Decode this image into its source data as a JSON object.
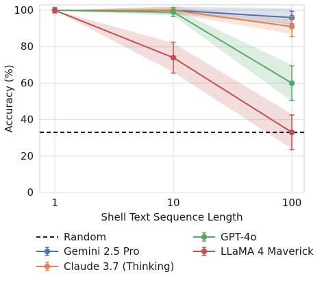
{
  "chart_data": {
    "type": "line",
    "title": "",
    "xlabel": "Shell Text Sequence Length",
    "ylabel": "Accuracy (%)",
    "x": [
      1,
      10,
      100
    ],
    "xticks": [
      "1",
      "10",
      "100"
    ],
    "yticks": [
      "0",
      "20",
      "40",
      "60",
      "80",
      "100"
    ],
    "ylim": [
      0,
      103
    ],
    "grid": true,
    "legend_position": "below",
    "random_baseline": {
      "name": "Random",
      "value": 33,
      "color": "#000000",
      "style": "dashed"
    },
    "series": [
      {
        "name": "Gemini 2.5 Pro",
        "color": "#4c72b0",
        "values": [
          100,
          100,
          96
        ],
        "err": [
          0,
          0,
          3.5
        ],
        "band_low": [
          100,
          98,
          92
        ],
        "band_high": [
          100,
          102,
          101
        ]
      },
      {
        "name": "Claude 3.7 (Thinking)",
        "color": "#dd8452",
        "values": [
          100,
          100,
          91
        ],
        "err": [
          0,
          1.5,
          5.5
        ],
        "band_low": [
          100,
          98,
          87
        ],
        "band_high": [
          100,
          102,
          95
        ]
      },
      {
        "name": "GPT-4o",
        "color": "#55a868",
        "values": [
          100,
          99,
          60
        ],
        "err": [
          0,
          2.5,
          9.5
        ],
        "band_low": [
          100,
          97,
          50
        ],
        "band_high": [
          100,
          101,
          70
        ]
      },
      {
        "name": "LLaMA 4 Maverick",
        "color": "#c44e52",
        "values": [
          100,
          74,
          33
        ],
        "err": [
          1.5,
          8.5,
          9.5
        ],
        "band_low": [
          100,
          66,
          24
        ],
        "band_high": [
          100,
          82,
          43
        ]
      }
    ]
  }
}
